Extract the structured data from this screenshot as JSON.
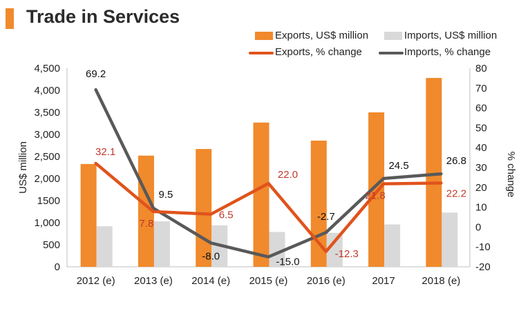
{
  "header": {
    "title": "Trade in Services"
  },
  "colors": {
    "accent": "#f08a2c",
    "exports_bar": "#f08a2c",
    "imports_bar": "#d9d9d9",
    "exports_line": "#e0531c",
    "imports_line": "#595959",
    "exports_label": "#c0392b"
  },
  "legend": {
    "exports_bar": "Exports, US$ million",
    "imports_bar": "Imports, US$ million",
    "exports_line": "Exports, % change",
    "imports_line": "Imports, % change"
  },
  "chart_data": {
    "type": "bar",
    "title": "Trade in Services",
    "ylabel": "US$ million",
    "y2label": "% change",
    "ylim": [
      0,
      4500
    ],
    "y2lim": [
      -20,
      80
    ],
    "yticks": [
      "0",
      "500",
      "1,000",
      "1500",
      "2,000",
      "2,500",
      "3,000",
      "3,500",
      "4,000",
      "4,500"
    ],
    "y2ticks": [
      "-20",
      "-10",
      "0",
      "10",
      "20",
      "30",
      "40",
      "50",
      "60",
      "70",
      "80"
    ],
    "categories": [
      "2012 (e)",
      "2013 (e)",
      "2014 (e)",
      "2015 (e)",
      "2016 (e)",
      "2017",
      "2018 (e)"
    ],
    "series": [
      {
        "name": "Exports, US$ million",
        "kind": "bar",
        "axis": "left",
        "values": [
          2330,
          2520,
          2670,
          3270,
          2860,
          3500,
          4280
        ]
      },
      {
        "name": "Imports, US$ million",
        "kind": "bar",
        "axis": "left",
        "values": [
          920,
          1030,
          940,
          790,
          770,
          960,
          1230
        ]
      },
      {
        "name": "Exports, % change",
        "kind": "line",
        "axis": "right",
        "values": [
          32.1,
          7.8,
          6.5,
          22.0,
          -12.3,
          21.8,
          22.2
        ],
        "labels": [
          "32.1",
          "7.8",
          "6.5",
          "22.0",
          "-12.3",
          "21.8",
          "22.2"
        ]
      },
      {
        "name": "Imports, % change",
        "kind": "line",
        "axis": "right",
        "values": [
          69.2,
          9.5,
          -8.0,
          -15.0,
          -2.7,
          24.5,
          26.8
        ],
        "labels": [
          "69.2",
          "9.5",
          "-8.0",
          "-15.0",
          "-2.7",
          "24.5",
          "26.8"
        ]
      }
    ],
    "legend_position": "top-right",
    "grid": false
  }
}
